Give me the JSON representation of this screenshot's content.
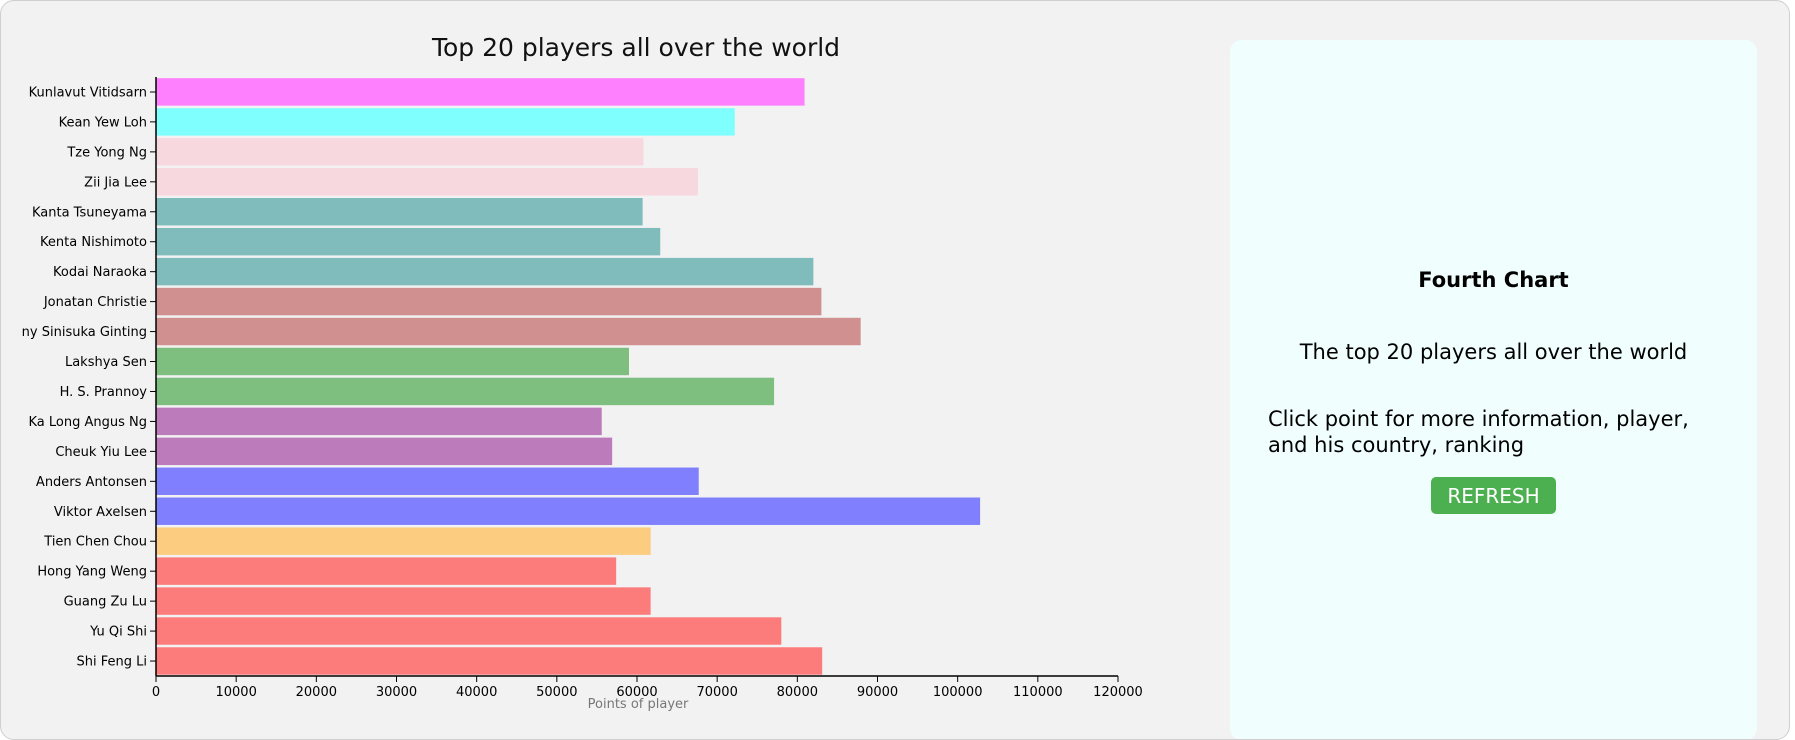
{
  "chart_data": {
    "type": "bar",
    "orientation": "horizontal",
    "title": "Top 20 players all over the world",
    "xlabel": "Points of player",
    "ylabel": "",
    "xlim": [
      0,
      120000
    ],
    "xticks": [
      0,
      10000,
      20000,
      30000,
      40000,
      50000,
      60000,
      70000,
      80000,
      90000,
      100000,
      110000,
      120000
    ],
    "grid": false,
    "categories": [
      "Kunlavut Vitidsarn",
      "Kean Yew Loh",
      "Tze Yong Ng",
      "Zii Jia Lee",
      "Kanta Tsuneyama",
      "Kenta Nishimoto",
      "Kodai Naraoka",
      "Jonatan Christie",
      "ny Sinisuka Ginting",
      "Lakshya Sen",
      "H. S. Prannoy",
      "Ka Long Angus Ng",
      "Cheuk Yiu Lee",
      "Anders Antonsen",
      "Viktor Axelsen",
      "Tien Chen Chou",
      "Hong Yang Weng",
      "Guang Zu Lu",
      "Yu Qi Shi",
      "Shi Feng Li"
    ],
    "values": [
      80900,
      72200,
      60800,
      67600,
      60700,
      62900,
      82000,
      83000,
      87900,
      59000,
      77100,
      55600,
      56900,
      67700,
      102800,
      61700,
      57400,
      61700,
      78000,
      83100
    ],
    "colors": [
      "#ff80ff",
      "#80ffff",
      "#f8d8df",
      "#f8d8df",
      "#80bcbc",
      "#80bcbc",
      "#80bcbc",
      "#d09090",
      "#d09090",
      "#7ebe7e",
      "#7ebe7e",
      "#bc7cbc",
      "#bc7cbc",
      "#8080fe",
      "#8080fe",
      "#fccc80",
      "#fc7c7c",
      "#fc7c7c",
      "#fc7c7c",
      "#fc7c7c"
    ]
  },
  "panel": {
    "heading": "Fourth Chart",
    "subtitle": "The top 20 players all over the world",
    "instruction": "Click point for more information, player, and his country, ranking",
    "refresh_label": "REFRESH"
  }
}
